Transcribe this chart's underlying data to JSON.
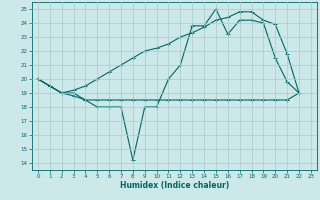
{
  "xlabel": "Humidex (Indice chaleur)",
  "bg_color": "#cce8e8",
  "grid_color": "#aacccc",
  "line_color": "#006666",
  "xlim": [
    -0.5,
    23.5
  ],
  "ylim": [
    13.5,
    25.5
  ],
  "xticks": [
    0,
    1,
    2,
    3,
    4,
    5,
    6,
    7,
    8,
    9,
    10,
    11,
    12,
    13,
    14,
    15,
    16,
    17,
    18,
    19,
    20,
    21,
    22,
    23
  ],
  "yticks": [
    14,
    15,
    16,
    17,
    18,
    19,
    20,
    21,
    22,
    23,
    24,
    25
  ],
  "series1_x": [
    0,
    1,
    2,
    3,
    4,
    5,
    6,
    7,
    8,
    9,
    10,
    11,
    12,
    13,
    14,
    15,
    16,
    17,
    18,
    19,
    20,
    21,
    22
  ],
  "series1_y": [
    20,
    19.5,
    19,
    19,
    18.5,
    18,
    18,
    18,
    14.2,
    18,
    18,
    20,
    21,
    23.8,
    23.8,
    25,
    23.2,
    24.2,
    24.2,
    24,
    21.5,
    19.8,
    19
  ],
  "series2_x": [
    0,
    1,
    2,
    3,
    4,
    5,
    6,
    7,
    8,
    9,
    10,
    11,
    12,
    13,
    14,
    15,
    16,
    17,
    18,
    19,
    20,
    21,
    22
  ],
  "series2_y": [
    20,
    19.5,
    19,
    18.8,
    18.5,
    18.5,
    18.5,
    18.5,
    18.5,
    18.5,
    18.5,
    18.5,
    18.5,
    18.5,
    18.5,
    18.5,
    18.5,
    18.5,
    18.5,
    18.5,
    18.5,
    18.5,
    19
  ],
  "series3_x": [
    0,
    1,
    2,
    3,
    4,
    5,
    6,
    7,
    8,
    9,
    10,
    11,
    12,
    13,
    14,
    15,
    16,
    17,
    18,
    19,
    20,
    21,
    22
  ],
  "series3_y": [
    20,
    19.5,
    19,
    19.2,
    19.5,
    20.0,
    20.5,
    21.0,
    21.5,
    22.0,
    22.2,
    22.5,
    23.0,
    23.3,
    23.7,
    24.2,
    24.4,
    24.8,
    24.8,
    24.2,
    23.9,
    21.8,
    19
  ],
  "markersize": 3,
  "linewidth": 0.8
}
